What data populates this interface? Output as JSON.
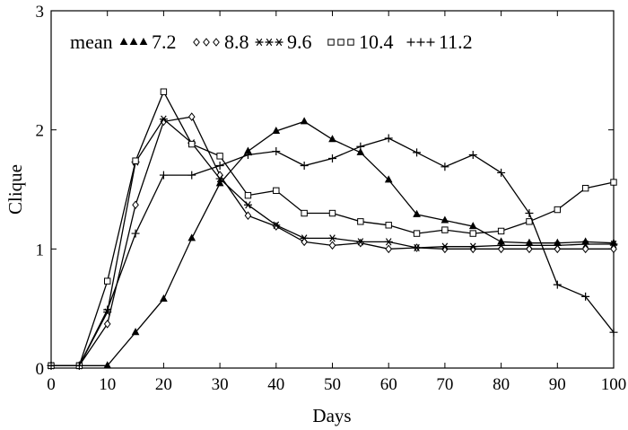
{
  "chart_data": {
    "type": "line",
    "title": "",
    "xlabel": "Days",
    "ylabel": "Clique",
    "xlim": [
      0,
      100
    ],
    "ylim": [
      0,
      3
    ],
    "xticks": [
      0,
      10,
      20,
      30,
      40,
      50,
      60,
      70,
      80,
      90,
      100
    ],
    "yticks": [
      0,
      1,
      2,
      3
    ],
    "legend_title": "mean",
    "legend_position": "top-left",
    "x": [
      0,
      5,
      10,
      15,
      20,
      25,
      30,
      35,
      40,
      45,
      50,
      55,
      60,
      65,
      70,
      75,
      80,
      85,
      90,
      95,
      100
    ],
    "series": [
      {
        "name": "7.2",
        "marker": "triangle",
        "values": [
          0.02,
          0.02,
          0.02,
          0.3,
          0.58,
          1.09,
          1.55,
          1.82,
          1.99,
          2.07,
          1.92,
          1.81,
          1.58,
          1.29,
          1.24,
          1.19,
          1.06,
          1.05,
          1.05,
          1.06,
          1.05
        ]
      },
      {
        "name": "8.8",
        "marker": "diamond",
        "values": [
          0.02,
          0.02,
          0.37,
          1.37,
          2.07,
          2.11,
          1.62,
          1.28,
          1.19,
          1.06,
          1.03,
          1.05,
          1.0,
          1.01,
          1.0,
          1.0,
          1.0,
          1.0,
          1.0,
          1.0,
          1.0
        ]
      },
      {
        "name": "9.6",
        "marker": "asterisk",
        "values": [
          0.02,
          0.02,
          0.47,
          1.73,
          2.09,
          1.89,
          1.59,
          1.37,
          1.2,
          1.09,
          1.09,
          1.06,
          1.06,
          1.01,
          1.02,
          1.02,
          1.03,
          1.03,
          1.03,
          1.04,
          1.04
        ]
      },
      {
        "name": "10.4",
        "marker": "square",
        "values": [
          0.02,
          0.02,
          0.73,
          1.74,
          2.32,
          1.88,
          1.78,
          1.45,
          1.49,
          1.3,
          1.3,
          1.23,
          1.2,
          1.13,
          1.16,
          1.13,
          1.15,
          1.23,
          1.33,
          1.51,
          1.56
        ]
      },
      {
        "name": "11.2",
        "marker": "plus",
        "values": [
          0.02,
          0.02,
          0.49,
          1.13,
          1.62,
          1.62,
          1.7,
          1.79,
          1.82,
          1.7,
          1.76,
          1.86,
          1.93,
          1.81,
          1.69,
          1.79,
          1.64,
          1.3,
          0.7,
          0.6,
          0.3
        ]
      }
    ]
  }
}
